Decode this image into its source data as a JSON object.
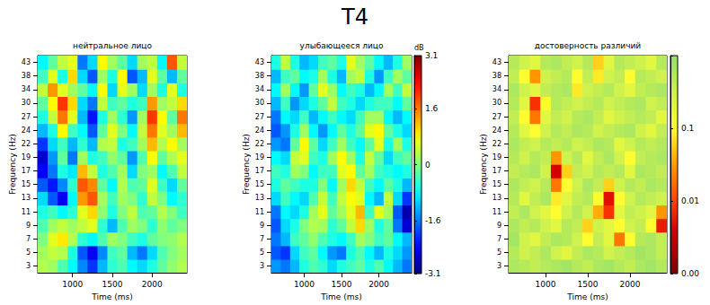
{
  "title": "T4",
  "chart_data": [
    {
      "type": "heatmap",
      "title": "нейтральное лицо",
      "x_label": "Time (ms)",
      "y_label": "Frequency (Hz)",
      "x": [
        625,
        750,
        875,
        1000,
        1125,
        1250,
        1375,
        1500,
        1625,
        1750,
        1875,
        2000,
        2125,
        2250,
        2375
      ],
      "y": [
        3,
        5,
        7,
        9,
        11,
        13,
        15,
        17,
        19,
        22,
        24,
        27,
        30,
        34,
        38,
        43
      ],
      "xticks": [
        1000,
        1500,
        2000
      ],
      "clim": [
        -3.1,
        3.1
      ],
      "values": [
        [
          0.3,
          0.2,
          -0.3,
          -0.8,
          -1.5,
          -2.0,
          -1.2,
          -0.5,
          -0.3,
          -0.8,
          -1.0,
          -0.6,
          -0.2,
          0.1,
          0.3
        ],
        [
          0.2,
          0.4,
          0.3,
          -0.6,
          -1.8,
          -2.4,
          -1.5,
          -0.4,
          -0.2,
          -1.2,
          -1.6,
          -1.0,
          -0.3,
          0.0,
          0.2
        ],
        [
          0.0,
          0.6,
          0.9,
          0.3,
          -0.5,
          -0.8,
          -0.3,
          0.2,
          0.0,
          -0.4,
          -0.6,
          -0.2,
          0.0,
          0.1,
          0.3
        ],
        [
          -0.3,
          0.2,
          0.4,
          0.2,
          0.4,
          0.6,
          -0.5,
          -1.2,
          -0.3,
          0.2,
          0.0,
          -0.5,
          0.1,
          -0.2,
          0.0
        ],
        [
          -0.6,
          -0.4,
          -0.8,
          -0.5,
          0.6,
          1.0,
          0.1,
          -0.6,
          0.0,
          0.4,
          -0.3,
          -0.2,
          0.3,
          0.0,
          -0.4
        ],
        [
          -1.0,
          -1.8,
          -2.4,
          -0.8,
          1.4,
          1.8,
          0.2,
          -0.4,
          0.2,
          0.0,
          -0.5,
          0.4,
          0.0,
          -0.8,
          -0.5
        ],
        [
          -1.8,
          -2.2,
          -1.5,
          -0.5,
          1.8,
          1.5,
          -0.2,
          -0.8,
          0.3,
          -0.3,
          -0.2,
          0.6,
          -0.4,
          -1.0,
          -0.2
        ],
        [
          -2.4,
          -1.6,
          -0.6,
          -0.9,
          1.2,
          0.4,
          -0.6,
          -0.3,
          0.2,
          -1.0,
          0.0,
          0.2,
          -0.8,
          -0.3,
          0.4
        ],
        [
          -2.6,
          -1.4,
          -0.2,
          -1.6,
          0.2,
          -0.6,
          -0.4,
          0.1,
          -0.2,
          -1.4,
          -0.3,
          0.8,
          -0.2,
          0.3,
          0.6
        ],
        [
          -2.0,
          -1.0,
          -0.4,
          -1.2,
          -0.5,
          -1.2,
          0.3,
          0.4,
          -0.6,
          -0.4,
          0.2,
          1.2,
          0.3,
          0.8,
          0.2
        ],
        [
          -1.2,
          -0.6,
          0.8,
          -0.4,
          -0.8,
          -1.8,
          -0.2,
          0.6,
          0.0,
          -0.8,
          0.4,
          1.6,
          0.6,
          0.2,
          1.2
        ],
        [
          -0.6,
          0.4,
          1.6,
          0.6,
          -1.2,
          -2.2,
          -0.6,
          0.2,
          -0.5,
          -1.4,
          0.2,
          2.0,
          0.8,
          -0.2,
          1.6
        ],
        [
          -0.2,
          0.8,
          2.0,
          1.0,
          -1.0,
          -1.6,
          0.4,
          -0.4,
          -0.2,
          -0.6,
          -0.4,
          1.4,
          0.2,
          0.4,
          1.0
        ],
        [
          0.4,
          1.4,
          0.6,
          0.2,
          -0.2,
          -0.8,
          0.8,
          -1.0,
          0.6,
          0.2,
          -1.0,
          0.2,
          -0.6,
          0.6,
          -0.6
        ],
        [
          -0.4,
          0.6,
          -0.6,
          1.0,
          -1.0,
          -1.8,
          0.2,
          -0.6,
          0.8,
          -1.8,
          -1.2,
          0.6,
          -0.2,
          -1.2,
          -0.2
        ],
        [
          -0.8,
          -0.2,
          0.4,
          0.6,
          -1.6,
          -1.0,
          0.8,
          0.2,
          -0.2,
          -1.0,
          0.2,
          0.4,
          -0.8,
          1.8,
          0.4
        ]
      ]
    },
    {
      "type": "heatmap",
      "title": "улыбающееся лицо",
      "x_label": "Time (ms)",
      "y_label": "Frequency (Hz)",
      "x": [
        625,
        750,
        875,
        1000,
        1125,
        1250,
        1375,
        1500,
        1625,
        1750,
        1875,
        2000,
        2125,
        2250,
        2375
      ],
      "y": [
        3,
        5,
        7,
        9,
        11,
        13,
        15,
        17,
        19,
        22,
        24,
        27,
        30,
        34,
        38,
        43
      ],
      "xticks": [
        1000,
        1500,
        2000
      ],
      "clim": [
        -3.1,
        3.1
      ],
      "colorbar": {
        "label": "dB",
        "ticks": [
          3.1,
          1.6,
          0,
          -1.6,
          -3.1
        ]
      },
      "values": [
        [
          -1.4,
          -1.6,
          -1.2,
          -0.6,
          -0.3,
          -0.5,
          -1.0,
          -0.6,
          -0.4,
          -0.2,
          -0.6,
          -0.3,
          -0.8,
          -1.2,
          -1.6
        ],
        [
          -1.8,
          -2.0,
          -1.0,
          -0.4,
          -0.2,
          -0.8,
          -1.4,
          -1.6,
          -0.6,
          -0.3,
          -0.8,
          -1.2,
          -0.6,
          -1.0,
          -1.4
        ],
        [
          -1.6,
          -1.2,
          -0.4,
          -0.2,
          0.1,
          -0.3,
          -0.6,
          -0.8,
          -0.4,
          0.2,
          0.0,
          -0.4,
          -0.2,
          -0.8,
          -1.2
        ],
        [
          -1.8,
          -1.0,
          -0.6,
          0.0,
          0.3,
          0.2,
          -0.5,
          -0.2,
          0.4,
          1.0,
          0.2,
          -0.6,
          -0.2,
          -1.6,
          -2.6
        ],
        [
          -1.6,
          -0.8,
          -1.0,
          -0.6,
          0.2,
          0.6,
          -0.2,
          0.2,
          0.6,
          1.2,
          -0.4,
          0.6,
          0.2,
          -1.8,
          -2.8
        ],
        [
          -1.0,
          -0.4,
          -0.8,
          -1.0,
          -0.3,
          0.4,
          -0.4,
          0.4,
          0.8,
          0.6,
          -0.8,
          -1.2,
          0.4,
          -1.0,
          -2.0
        ],
        [
          -0.6,
          -0.2,
          -0.4,
          -0.6,
          -0.6,
          0.0,
          -0.8,
          0.2,
          1.0,
          0.4,
          -0.4,
          -0.8,
          -0.2,
          -0.6,
          -1.2
        ],
        [
          -0.4,
          -0.6,
          0.2,
          0.0,
          -0.8,
          -0.4,
          -0.4,
          0.6,
          0.8,
          -0.2,
          0.2,
          -0.4,
          -0.6,
          -0.8,
          -0.6
        ],
        [
          -0.8,
          -1.0,
          0.4,
          0.6,
          -0.4,
          -0.6,
          0.2,
          0.8,
          0.2,
          -0.6,
          0.4,
          -0.2,
          -1.0,
          -0.4,
          -0.2
        ],
        [
          -1.4,
          -1.6,
          -0.2,
          0.8,
          -0.2,
          -1.0,
          -0.4,
          0.2,
          -0.4,
          -0.8,
          -0.2,
          0.6,
          -0.6,
          0.2,
          -0.6
        ],
        [
          -1.8,
          -1.4,
          -0.6,
          0.2,
          -0.8,
          -1.4,
          -0.8,
          -0.2,
          -0.6,
          -0.2,
          0.6,
          0.8,
          -0.2,
          -0.6,
          -1.0
        ],
        [
          -1.6,
          -0.8,
          -1.0,
          -0.4,
          -1.2,
          -0.8,
          -0.4,
          -0.8,
          -1.0,
          -0.4,
          0.2,
          0.2,
          -0.8,
          -1.2,
          -0.8
        ],
        [
          -1.2,
          -0.4,
          -1.4,
          -1.0,
          -0.6,
          -0.2,
          0.4,
          -0.4,
          -0.6,
          -1.0,
          -0.6,
          -0.4,
          -0.4,
          -0.8,
          -0.2
        ],
        [
          -0.8,
          0.2,
          -0.8,
          -1.4,
          -0.2,
          0.6,
          0.2,
          -0.8,
          -0.4,
          -0.6,
          -1.2,
          -0.8,
          0.2,
          -0.4,
          0.4
        ],
        [
          -1.2,
          -0.4,
          -0.2,
          -0.8,
          -0.6,
          0.2,
          -0.6,
          -1.2,
          0.2,
          0.4,
          -0.6,
          -1.4,
          -0.4,
          0.2,
          -0.2
        ],
        [
          -0.6,
          0.4,
          -0.6,
          -1.2,
          -1.0,
          -0.4,
          -0.2,
          -0.6,
          0.6,
          0.2,
          -0.2,
          -0.8,
          -1.2,
          -0.6,
          0.2
        ]
      ]
    },
    {
      "type": "heatmap",
      "title": "достоверность различий",
      "x_label": "Time (ms)",
      "y_label": "Frequency (Hz)",
      "x": [
        625,
        750,
        875,
        1000,
        1125,
        1250,
        1375,
        1500,
        1625,
        1750,
        1875,
        2000,
        2125,
        2250,
        2375
      ],
      "y": [
        3,
        5,
        7,
        9,
        11,
        13,
        15,
        17,
        19,
        22,
        24,
        27,
        30,
        34,
        38,
        43
      ],
      "xticks": [
        1000,
        1500,
        2000
      ],
      "clim": [
        0.001,
        1
      ],
      "colorbar": {
        "log": true,
        "ticks": [
          0.1,
          0.01,
          {
            "value": 0.001,
            "label": "0.00"
          }
        ]
      },
      "values": [
        [
          0.6,
          0.5,
          0.4,
          0.5,
          0.6,
          0.7,
          0.5,
          0.4,
          0.6,
          0.7,
          0.5,
          0.4,
          0.6,
          0.7,
          0.5
        ],
        [
          0.5,
          0.3,
          0.4,
          0.6,
          0.3,
          0.2,
          0.4,
          0.6,
          0.5,
          0.3,
          0.4,
          0.5,
          0.7,
          0.6,
          0.4
        ],
        [
          0.7,
          0.3,
          0.2,
          0.4,
          0.6,
          0.5,
          0.3,
          0.1,
          0.4,
          0.2,
          0.02,
          0.1,
          0.5,
          0.6,
          0.4
        ],
        [
          0.6,
          0.4,
          0.5,
          0.3,
          0.2,
          0.5,
          0.4,
          0.06,
          0.3,
          0.2,
          0.1,
          0.3,
          0.4,
          0.1,
          0.006
        ],
        [
          0.4,
          0.6,
          0.3,
          0.2,
          0.1,
          0.3,
          0.5,
          0.3,
          0.04,
          0.008,
          0.2,
          0.4,
          0.3,
          0.2,
          0.03
        ],
        [
          0.5,
          0.2,
          0.4,
          0.6,
          0.08,
          0.2,
          0.4,
          0.5,
          0.1,
          0.005,
          0.1,
          0.3,
          0.5,
          0.4,
          0.3
        ],
        [
          0.6,
          0.4,
          0.3,
          0.5,
          0.02,
          0.1,
          0.3,
          0.6,
          0.4,
          0.06,
          0.3,
          0.5,
          0.4,
          0.6,
          0.5
        ],
        [
          0.4,
          0.5,
          0.6,
          0.3,
          0.004,
          0.06,
          0.4,
          0.3,
          0.5,
          0.4,
          0.5,
          0.2,
          0.6,
          0.5,
          0.4
        ],
        [
          0.5,
          0.3,
          0.5,
          0.4,
          0.03,
          0.3,
          0.5,
          0.2,
          0.4,
          0.6,
          0.3,
          0.1,
          0.4,
          0.5,
          0.6
        ],
        [
          0.6,
          0.4,
          0.3,
          0.5,
          0.4,
          0.5,
          0.3,
          0.4,
          0.6,
          0.5,
          0.2,
          0.3,
          0.5,
          0.4,
          0.5
        ],
        [
          0.5,
          0.2,
          0.1,
          0.3,
          0.5,
          0.4,
          0.6,
          0.5,
          0.3,
          0.4,
          0.5,
          0.6,
          0.3,
          0.2,
          0.4
        ],
        [
          0.4,
          0.1,
          0.02,
          0.2,
          0.4,
          0.3,
          0.5,
          0.6,
          0.4,
          0.2,
          0.3,
          0.4,
          0.5,
          0.4,
          0.2
        ],
        [
          0.5,
          0.2,
          0.008,
          0.1,
          0.5,
          0.4,
          0.3,
          0.4,
          0.5,
          0.3,
          0.4,
          0.5,
          0.6,
          0.3,
          0.4
        ],
        [
          0.6,
          0.3,
          0.2,
          0.4,
          0.5,
          0.6,
          0.08,
          0.3,
          0.4,
          0.5,
          0.3,
          0.2,
          0.4,
          0.5,
          0.6
        ],
        [
          0.4,
          0.1,
          0.03,
          0.3,
          0.4,
          0.5,
          0.1,
          0.4,
          0.08,
          0.3,
          0.4,
          0.1,
          0.5,
          0.4,
          0.3
        ],
        [
          0.5,
          0.3,
          0.2,
          0.5,
          0.6,
          0.4,
          0.3,
          0.5,
          0.06,
          0.2,
          0.5,
          0.4,
          0.3,
          0.2,
          0.5
        ]
      ]
    }
  ]
}
